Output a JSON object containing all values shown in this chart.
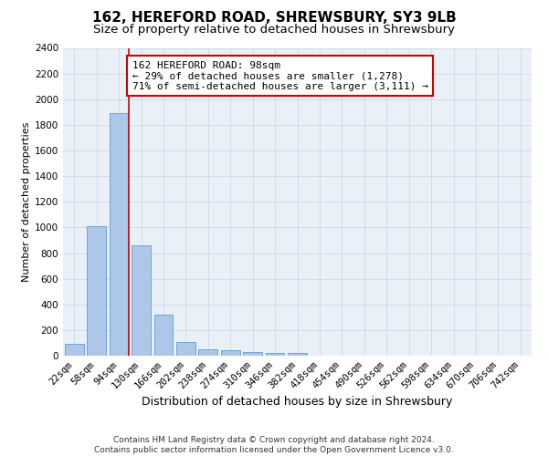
{
  "title1": "162, HEREFORD ROAD, SHREWSBURY, SY3 9LB",
  "title2": "Size of property relative to detached houses in Shrewsbury",
  "xlabel": "Distribution of detached houses by size in Shrewsbury",
  "ylabel": "Number of detached properties",
  "bar_labels": [
    "22sqm",
    "58sqm",
    "94sqm",
    "130sqm",
    "166sqm",
    "202sqm",
    "238sqm",
    "274sqm",
    "310sqm",
    "346sqm",
    "382sqm",
    "418sqm",
    "454sqm",
    "490sqm",
    "526sqm",
    "562sqm",
    "598sqm",
    "634sqm",
    "670sqm",
    "706sqm",
    "742sqm"
  ],
  "bar_values": [
    90,
    1010,
    1890,
    860,
    320,
    110,
    50,
    45,
    30,
    20,
    20,
    0,
    0,
    0,
    0,
    0,
    0,
    0,
    0,
    0,
    0
  ],
  "bar_color": "#aec6e8",
  "bar_edge_color": "#5a9fd4",
  "annotation_text": "162 HEREFORD ROAD: 98sqm\n← 29% of detached houses are smaller (1,278)\n71% of semi-detached houses are larger (3,111) →",
  "annotation_box_color": "#ffffff",
  "annotation_box_edge_color": "#cc0000",
  "ylim": [
    0,
    2400
  ],
  "yticks": [
    0,
    200,
    400,
    600,
    800,
    1000,
    1200,
    1400,
    1600,
    1800,
    2000,
    2200,
    2400
  ],
  "grid_color": "#d0d8e8",
  "background_color": "#eaf0f8",
  "footer_text": "Contains HM Land Registry data © Crown copyright and database right 2024.\nContains public sector information licensed under the Open Government Licence v3.0.",
  "title1_fontsize": 11,
  "title2_fontsize": 9.5,
  "xlabel_fontsize": 9,
  "ylabel_fontsize": 8,
  "tick_fontsize": 7.5,
  "annotation_fontsize": 8,
  "footer_fontsize": 6.5,
  "red_line_color": "#cc0000",
  "red_line_x": 2.43
}
